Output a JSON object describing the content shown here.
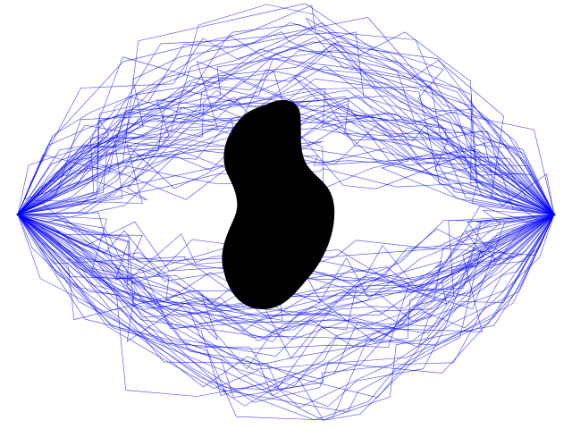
{
  "scene": {
    "background_color": "#ffffff",
    "path_color": "#0000ff",
    "obstacle_color": "#000000",
    "start_point": "left",
    "goal_point": "right"
  }
}
